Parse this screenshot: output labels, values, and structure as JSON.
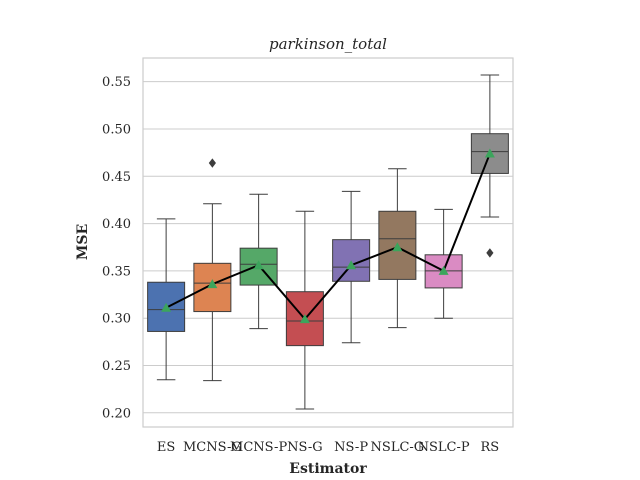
{
  "chart_data": {
    "type": "box",
    "title": "parkinson_total",
    "xlabel": "Estimator",
    "ylabel": "MSE",
    "ylim": [
      0.185,
      0.575
    ],
    "yticks": [
      0.2,
      0.25,
      0.3,
      0.35,
      0.4,
      0.45,
      0.5,
      0.55
    ],
    "ytick_labels": [
      "0.20",
      "0.25",
      "0.30",
      "0.35",
      "0.40",
      "0.45",
      "0.50",
      "0.55"
    ],
    "grid": true,
    "categories": [
      "ES",
      "MCNS-G",
      "MCNS-P",
      "NS-G",
      "NS-P",
      "NSLC-G",
      "NSLC-P",
      "RS"
    ],
    "colors": [
      "#4c72b0",
      "#dd8452",
      "#55a868",
      "#c44e52",
      "#8172b3",
      "#937860",
      "#da8bc3",
      "#8c8c8c"
    ],
    "boxes": [
      {
        "whisker_low": 0.235,
        "q1": 0.286,
        "median": 0.309,
        "q3": 0.338,
        "whisker_high": 0.405,
        "mean": 0.311,
        "outliers": []
      },
      {
        "whisker_low": 0.234,
        "q1": 0.307,
        "median": 0.337,
        "q3": 0.358,
        "whisker_high": 0.421,
        "mean": 0.336,
        "outliers": [
          0.464
        ]
      },
      {
        "whisker_low": 0.289,
        "q1": 0.335,
        "median": 0.357,
        "q3": 0.374,
        "whisker_high": 0.431,
        "mean": 0.356,
        "outliers": []
      },
      {
        "whisker_low": 0.204,
        "q1": 0.271,
        "median": 0.297,
        "q3": 0.328,
        "whisker_high": 0.413,
        "mean": 0.299,
        "outliers": []
      },
      {
        "whisker_low": 0.274,
        "q1": 0.339,
        "median": 0.354,
        "q3": 0.383,
        "whisker_high": 0.434,
        "mean": 0.356,
        "outliers": []
      },
      {
        "whisker_low": 0.29,
        "q1": 0.341,
        "median": 0.384,
        "q3": 0.413,
        "whisker_high": 0.458,
        "mean": 0.375,
        "outliers": []
      },
      {
        "whisker_low": 0.3,
        "q1": 0.332,
        "median": 0.35,
        "q3": 0.367,
        "whisker_high": 0.415,
        "mean": 0.35,
        "outliers": []
      },
      {
        "whisker_low": 0.407,
        "q1": 0.453,
        "median": 0.476,
        "q3": 0.495,
        "whisker_high": 0.557,
        "mean": 0.474,
        "outliers": [
          0.369
        ]
      }
    ],
    "mean_line_color": "#000000",
    "mean_marker_color": "#3ba55c"
  }
}
